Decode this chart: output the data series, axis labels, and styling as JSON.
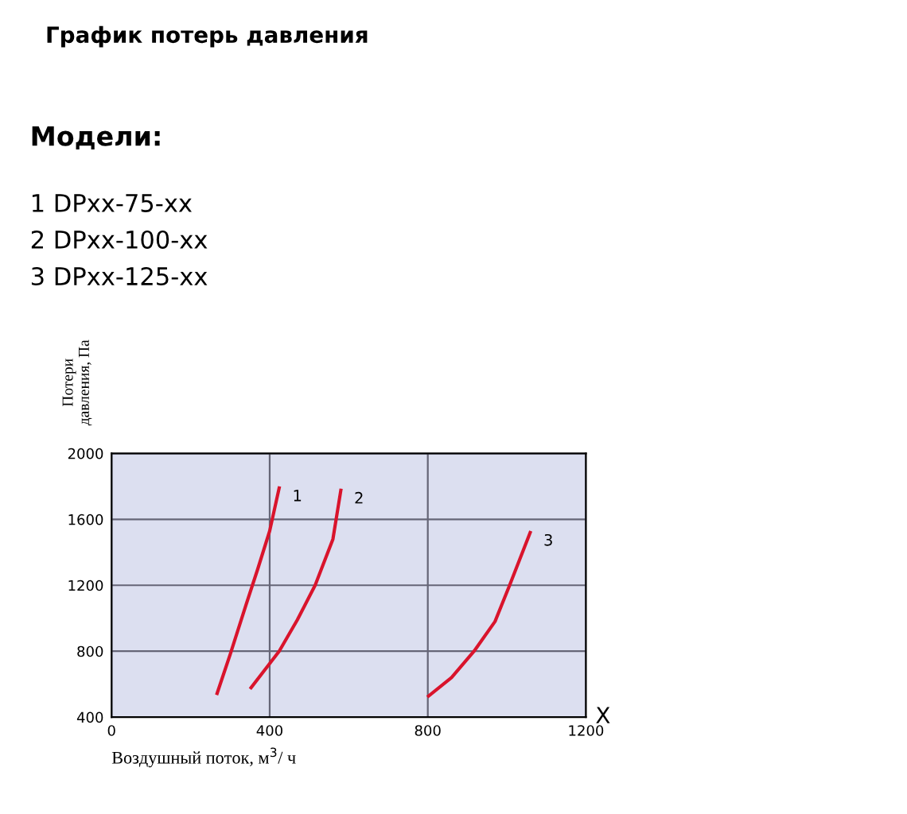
{
  "chart_data": {
    "type": "line",
    "title": "График потерь давления",
    "annotations": [
      "Модели:",
      "1 DPxx-75-xx",
      "2 DPxx-100-xx",
      "3 DPxx-125-xx",
      "X"
    ],
    "xlabel": "Воздушный поток, м$^{3}$/ ч",
    "ylabel": "Потери\nдавления, Па",
    "series": [
      {
        "name": "1",
        "color": "#d9142c",
        "x": [
          267,
          300,
          340,
          370,
          400,
          424
        ],
        "values": [
          544,
          780,
          1080,
          1300,
          1530,
          1790
        ]
      },
      {
        "name": "2",
        "color": "#d9142c",
        "x": [
          353,
          424,
          470,
          515,
          560,
          580
        ],
        "values": [
          579,
          800,
          990,
          1200,
          1480,
          1776
        ]
      },
      {
        "name": "3",
        "color": "#d9142c",
        "x": [
          802,
          860,
          917,
          970,
          1007,
          1059
        ],
        "values": [
          528,
          640,
          800,
          980,
          1200,
          1520
        ]
      }
    ],
    "xlim": [
      0,
      1200
    ],
    "xticks": [
      0,
      400,
      800,
      1200
    ],
    "ylim": [
      400,
      2000
    ],
    "yticks": [
      400,
      800,
      1200,
      1600,
      2000
    ],
    "grid": true,
    "line_style": "solid",
    "marker": "none"
  }
}
